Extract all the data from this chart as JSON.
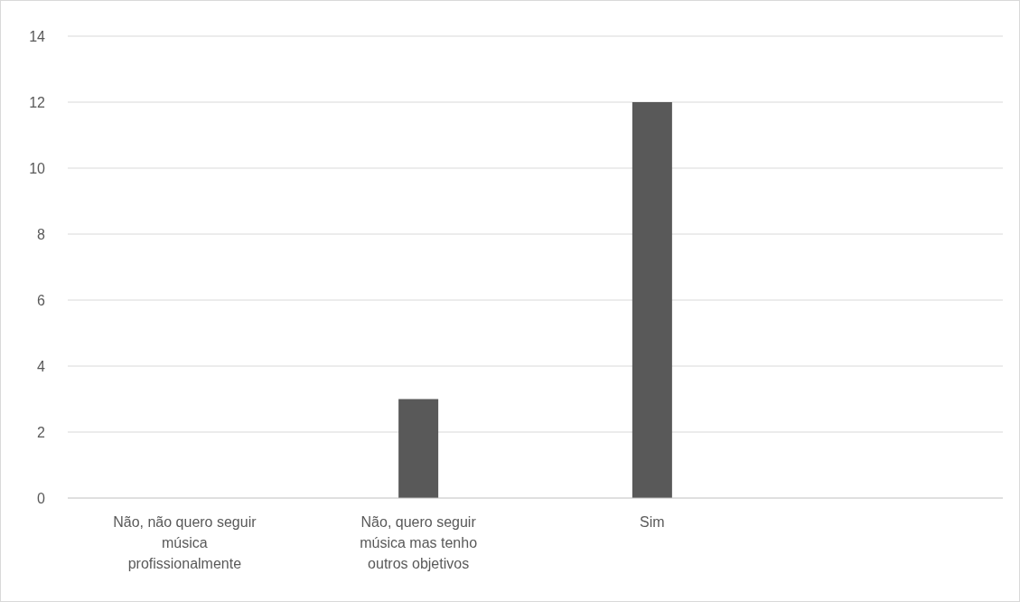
{
  "chart_data": {
    "type": "bar",
    "categories": [
      "Não, não quero seguir música profissionalmente",
      "Não, quero seguir música mas tenho outros objetivos",
      "Sim",
      null
    ],
    "values": [
      0,
      3,
      12,
      null
    ],
    "color": "#595959",
    "ylim": [
      0,
      14
    ],
    "yticks": [
      0,
      2,
      4,
      6,
      8,
      10,
      12,
      14
    ],
    "grid": "y"
  }
}
